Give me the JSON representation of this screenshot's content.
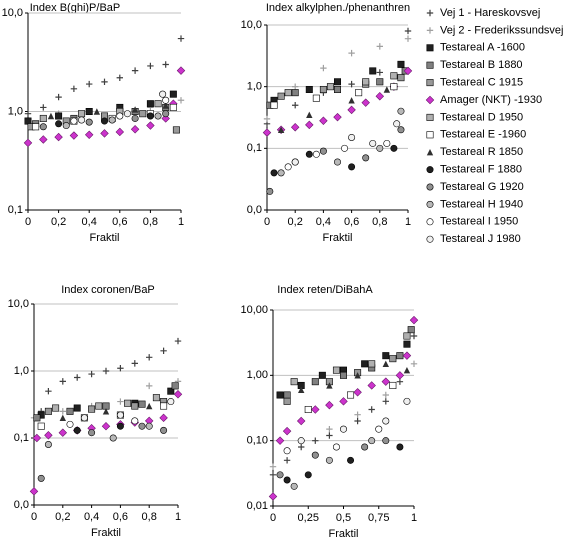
{
  "chart_data": [
    {
      "type": "scatter",
      "title": "Index B(ghi)P/BaP",
      "x_label": "Fraktil",
      "log_y": true,
      "grid": true,
      "xlim": [
        0,
        1
      ],
      "xticks": [
        0,
        {
          "value": 0.2,
          "label": "0,2"
        },
        {
          "value": 0.4,
          "label": "0,4"
        },
        {
          "value": 0.6,
          "label": "0,6"
        },
        {
          "value": 0.8,
          "label": "0,8"
        },
        1
      ],
      "ylim": [
        0.1,
        10
      ],
      "yticks": [
        {
          "value": 0.1,
          "label": "0,1"
        },
        {
          "value": 1,
          "label": "1,0"
        },
        {
          "value": 10,
          "label": "10,0"
        }
      ],
      "series": [
        {
          "name": "Vej 1 - Hareskovsvej",
          "color": "#404040",
          "marker": "plus",
          "x": [
            0,
            0.1,
            0.2,
            0.3,
            0.4,
            0.5,
            0.6,
            0.7,
            0.8,
            0.9,
            1
          ],
          "values": [
            0.95,
            1.1,
            1.4,
            1.7,
            1.9,
            2.0,
            2.2,
            2.6,
            2.9,
            3.0,
            5.5
          ]
        },
        {
          "name": "Vej 2 - Frederikssundsvej",
          "color": "#a0a0a0",
          "marker": "plus",
          "x": [
            0,
            0.2,
            0.4,
            0.6,
            0.8,
            1
          ],
          "values": [
            0.8,
            0.95,
            1.0,
            1.05,
            1.1,
            1.3
          ]
        },
        {
          "name": "Testareal A -1600",
          "color": "#202020",
          "marker": "square",
          "x": [
            0,
            0.2,
            0.4,
            0.6,
            0.8,
            0.95
          ],
          "values": [
            0.8,
            0.9,
            1.0,
            1.1,
            1.2,
            1.5
          ]
        },
        {
          "name": "Testareal B 1880",
          "color": "#808080",
          "marker": "square",
          "x": [
            0.05,
            0.3,
            0.5,
            0.7,
            0.9
          ],
          "values": [
            0.75,
            0.85,
            0.9,
            1.0,
            1.1
          ]
        },
        {
          "name": "Testareal C 1915",
          "color": "#999999",
          "marker": "square",
          "x": [
            0.02,
            0.25,
            0.5,
            0.75,
            0.97
          ],
          "values": [
            0.7,
            0.8,
            0.9,
            0.95,
            0.65
          ]
        },
        {
          "name": "Amager (NKT) -1930",
          "color": "#cc33cc",
          "marker": "diamond",
          "x": [
            0,
            0.1,
            0.2,
            0.3,
            0.4,
            0.5,
            0.6,
            0.7,
            0.8,
            0.9,
            0.95,
            1
          ],
          "values": [
            0.48,
            0.52,
            0.55,
            0.57,
            0.58,
            0.6,
            0.62,
            0.66,
            0.72,
            0.85,
            1.2,
            2.6
          ]
        },
        {
          "name": "Testareal D 1950",
          "color": "#b0b0b0",
          "marker": "square",
          "x": [
            0.1,
            0.35,
            0.6,
            0.85
          ],
          "values": [
            0.85,
            0.95,
            1.0,
            1.2
          ]
        },
        {
          "name": "Testareal E -1960",
          "color": "#ffffff",
          "marker": "square",
          "x": [
            0.05,
            0.3,
            0.55,
            0.8,
            0.95
          ],
          "values": [
            0.7,
            0.8,
            0.85,
            0.95,
            1.1
          ]
        },
        {
          "name": "Testareal R 1850",
          "color": "#303030",
          "marker": "triangle",
          "x": [
            0.15,
            0.45,
            0.7,
            0.9
          ],
          "values": [
            0.9,
            1.0,
            1.05,
            1.15
          ]
        },
        {
          "name": "Testareal F 1880",
          "color": "#202020",
          "marker": "circle",
          "x": [
            0.2,
            0.5,
            0.8
          ],
          "values": [
            0.75,
            0.8,
            0.9
          ]
        },
        {
          "name": "Testareal G 1920",
          "color": "#909090",
          "marker": "circle",
          "x": [
            0.1,
            0.4,
            0.7,
            0.9
          ],
          "values": [
            0.7,
            0.78,
            0.85,
            0.95
          ]
        },
        {
          "name": "Testareal H 1940",
          "color": "#b8b8b8",
          "marker": "circle",
          "x": [
            0.25,
            0.55,
            0.85
          ],
          "values": [
            0.72,
            0.82,
            0.9
          ]
        },
        {
          "name": "Testareal I 1950",
          "color": "#ffffff",
          "marker": "circle",
          "x": [
            0.3,
            0.6,
            0.9
          ],
          "values": [
            0.8,
            0.9,
            1.3
          ]
        },
        {
          "name": "Testareal J 1980",
          "color": "#f0f0f0",
          "marker": "circle",
          "x": [
            0.35,
            0.65,
            0.88
          ],
          "values": [
            0.82,
            0.95,
            1.5
          ]
        }
      ]
    },
    {
      "type": "scatter",
      "title": "Index alkylphen./phenanthren",
      "x_label": "Fraktil",
      "log_y": true,
      "grid": true,
      "xlim": [
        0,
        1
      ],
      "xticks": [
        0,
        {
          "value": 0.2,
          "label": "0,2"
        },
        {
          "value": 0.4,
          "label": "0,4"
        },
        {
          "value": 0.6,
          "label": "0,6"
        },
        {
          "value": 0.8,
          "label": "0,8"
        },
        1
      ],
      "ylim": [
        0.01,
        10
      ],
      "yticks": [
        {
          "value": 0.01,
          "label": "0,0"
        },
        {
          "value": 0.1,
          "label": "0,1"
        },
        {
          "value": 1,
          "label": "1,0"
        },
        {
          "value": 10,
          "label": "10,0"
        }
      ],
      "series": [
        {
          "x": [
            0,
            0.2,
            0.4,
            0.6,
            0.8,
            1
          ],
          "values": [
            0.25,
            0.5,
            0.8,
            1.1,
            1.7,
            8
          ]
        },
        {
          "x": [
            0,
            0.2,
            0.4,
            0.6,
            0.8,
            1
          ],
          "values": [
            0.3,
            1.0,
            2.0,
            3.5,
            4.5,
            6
          ]
        },
        {
          "x": [
            0.05,
            0.3,
            0.5,
            0.75,
            0.95
          ],
          "values": [
            0.6,
            0.9,
            1.2,
            1.8,
            2.3
          ]
        },
        {
          "x": [
            0.02,
            0.2,
            0.5,
            0.8,
            0.98
          ],
          "values": [
            0.5,
            0.8,
            0.9,
            1.2,
            1.8
          ]
        },
        {
          "x": [
            0.1,
            0.4,
            0.7,
            0.95
          ],
          "values": [
            0.7,
            0.9,
            1.1,
            1.4
          ]
        },
        {
          "x": [
            0,
            0.1,
            0.2,
            0.3,
            0.4,
            0.5,
            0.6,
            0.7,
            0.8,
            0.9,
            1
          ],
          "values": [
            0.18,
            0.2,
            0.22,
            0.24,
            0.28,
            0.32,
            0.42,
            0.55,
            0.7,
            1.0,
            1.8
          ]
        },
        {
          "x": [
            0.15,
            0.45,
            0.7,
            0.9
          ],
          "values": [
            0.8,
            1.0,
            1.2,
            1.5
          ]
        },
        {
          "x": [
            0.05,
            0.35,
            0.65,
            0.9
          ],
          "values": [
            0.5,
            0.65,
            0.8,
            1.0
          ]
        },
        {
          "x": [
            0.1,
            0.3,
            0.6,
            0.85
          ],
          "values": [
            0.2,
            0.35,
            0.6,
            0.9
          ]
        },
        {
          "x": [
            0.05,
            0.3,
            0.6,
            0.9
          ],
          "values": [
            0.04,
            0.08,
            0.05,
            0.1
          ]
        },
        {
          "x": [
            0.02,
            0.2,
            0.4,
            0.7,
            0.95
          ],
          "values": [
            0.02,
            0.06,
            0.09,
            0.07,
            0.2
          ]
        },
        {
          "x": [
            0.1,
            0.5,
            0.8,
            0.95
          ],
          "values": [
            0.04,
            0.06,
            0.1,
            0.4
          ]
        },
        {
          "x": [
            0.15,
            0.35,
            0.55,
            0.85
          ],
          "values": [
            0.05,
            0.08,
            0.1,
            0.12
          ]
        },
        {
          "x": [
            0.2,
            0.6,
            0.75,
            0.92
          ],
          "values": [
            0.06,
            0.15,
            0.12,
            0.25
          ]
        }
      ]
    },
    {
      "type": "scatter",
      "title": "Index coronen/BaP",
      "x_label": "Fraktil",
      "log_y": true,
      "grid": true,
      "xlim": [
        0,
        1
      ],
      "xticks": [
        0,
        {
          "value": 0.2,
          "label": "0,2"
        },
        {
          "value": 0.4,
          "label": "0,4"
        },
        {
          "value": 0.6,
          "label": "0,6"
        },
        {
          "value": 0.8,
          "label": "0,8"
        },
        1
      ],
      "ylim": [
        0.01,
        10
      ],
      "yticks": [
        {
          "value": 0.01,
          "label": "0,0"
        },
        {
          "value": 0.1,
          "label": "0,1"
        },
        {
          "value": 1,
          "label": "1,0"
        },
        {
          "value": 10,
          "label": "10,0"
        }
      ],
      "series": [
        {
          "x": [
            0.05,
            0.1,
            0.2,
            0.3,
            0.4,
            0.5,
            0.6,
            0.7,
            0.8,
            0.9,
            1
          ],
          "values": [
            0.25,
            0.5,
            0.7,
            0.8,
            0.9,
            1.0,
            1.1,
            1.3,
            1.6,
            2.0,
            2.8
          ]
        },
        {
          "x": [
            0,
            0.2,
            0.4,
            0.6,
            0.8,
            1
          ],
          "values": [
            0.2,
            0.25,
            0.3,
            0.35,
            0.6,
            0.7
          ]
        },
        {
          "x": [
            0.05,
            0.3,
            0.5,
            0.7,
            0.95
          ],
          "values": [
            0.22,
            0.28,
            0.3,
            0.33,
            0.5
          ]
        },
        {
          "x": [
            0.02,
            0.25,
            0.5,
            0.75,
            0.98
          ],
          "values": [
            0.2,
            0.25,
            0.3,
            0.32,
            0.6
          ]
        },
        {
          "x": [
            0.1,
            0.4,
            0.7,
            0.9
          ],
          "values": [
            0.25,
            0.27,
            0.3,
            0.35
          ]
        },
        {
          "x": [
            0,
            0.02,
            0.1,
            0.2,
            0.3,
            0.4,
            0.5,
            0.6,
            0.7,
            0.8,
            0.9,
            1
          ],
          "values": [
            0.016,
            0.1,
            0.11,
            0.12,
            0.13,
            0.14,
            0.15,
            0.16,
            0.17,
            0.18,
            0.2,
            0.45
          ]
        },
        {
          "x": [
            0.15,
            0.45,
            0.65,
            0.85
          ],
          "values": [
            0.28,
            0.3,
            0.33,
            0.4
          ]
        },
        {
          "x": [
            0.05,
            0.35,
            0.6,
            0.9
          ],
          "values": [
            0.15,
            0.2,
            0.22,
            0.3
          ]
        },
        {
          "x": [
            0.2,
            0.5,
            0.8
          ],
          "values": [
            0.2,
            0.25,
            0.3
          ]
        },
        {
          "x": [
            0.3,
            0.6
          ],
          "values": [
            0.13,
            0.15
          ]
        },
        {
          "x": [
            0.05,
            0.4,
            0.75,
            0.9
          ],
          "values": [
            0.025,
            0.12,
            0.15,
            0.13
          ]
        },
        {
          "x": [
            0.1,
            0.55,
            0.8
          ],
          "values": [
            0.08,
            0.1,
            0.15
          ]
        },
        {
          "x": [
            0.25,
            0.7
          ],
          "values": [
            0.16,
            0.18
          ]
        },
        {
          "x": [
            0.35,
            0.6,
            0.95
          ],
          "values": [
            0.2,
            0.22,
            0.35
          ]
        }
      ]
    },
    {
      "type": "scatter",
      "title": "Index reten/DiBahA",
      "x_label": "Fraktil",
      "log_y": true,
      "grid": true,
      "xlim": [
        0,
        1
      ],
      "xticks": [
        0,
        {
          "value": 0.25,
          "label": "0,25"
        },
        {
          "value": 0.5,
          "label": "0,5"
        },
        {
          "value": 0.75,
          "label": "0,75"
        },
        1
      ],
      "ylim": [
        0.01,
        10
      ],
      "yticks": [
        {
          "value": 0.01,
          "label": "0,01"
        },
        {
          "value": 0.1,
          "label": "0,10"
        },
        {
          "value": 1,
          "label": "1,00"
        },
        {
          "value": 10,
          "label": "10,00"
        }
      ],
      "series": [
        {
          "x": [
            0,
            0.1,
            0.2,
            0.3,
            0.4,
            0.5,
            0.6,
            0.7,
            0.8,
            0.9,
            1
          ],
          "values": [
            0.03,
            0.05,
            0.08,
            0.1,
            0.12,
            0.15,
            0.2,
            0.3,
            0.4,
            0.8,
            4
          ]
        },
        {
          "x": [
            0,
            0.2,
            0.4,
            0.6,
            0.8,
            1
          ],
          "values": [
            0.04,
            0.1,
            0.15,
            0.25,
            0.5,
            1.5
          ]
        },
        {
          "x": [
            0.05,
            0.2,
            0.35,
            0.5,
            0.65,
            0.8,
            0.95
          ],
          "values": [
            0.5,
            0.7,
            1.0,
            1.2,
            1.5,
            2.0,
            3
          ]
        },
        {
          "x": [
            0.1,
            0.3,
            0.5,
            0.7,
            0.9,
            0.98
          ],
          "values": [
            0.5,
            0.8,
            1.0,
            1.3,
            2,
            5
          ]
        },
        {
          "x": [
            0.1,
            0.4,
            0.6,
            0.85
          ],
          "values": [
            0.4,
            0.8,
            1.1,
            1.8
          ]
        },
        {
          "x": [
            0,
            0.05,
            0.1,
            0.2,
            0.3,
            0.4,
            0.5,
            0.6,
            0.7,
            0.8,
            0.9,
            0.95,
            1
          ],
          "values": [
            0.014,
            0.1,
            0.14,
            0.2,
            0.3,
            0.35,
            0.4,
            0.55,
            0.7,
            0.8,
            1.0,
            2,
            7
          ]
        },
        {
          "x": [
            0.15,
            0.45,
            0.7,
            0.95
          ],
          "values": [
            0.8,
            1.2,
            1.5,
            4
          ]
        },
        {
          "x": [
            0.25,
            0.55,
            0.85
          ],
          "values": [
            0.3,
            0.5,
            0.7
          ]
        },
        {
          "x": [
            0.2,
            0.4,
            0.6,
            0.8,
            0.95
          ],
          "values": [
            0.6,
            0.7,
            1.0,
            1.5,
            1.2
          ]
        },
        {
          "x": [
            0.1,
            0.25,
            0.55,
            0.9
          ],
          "values": [
            0.025,
            0.03,
            0.05,
            0.08
          ]
        },
        {
          "x": [
            0.05,
            0.3,
            0.65,
            0.8
          ],
          "values": [
            0.03,
            0.06,
            0.08,
            0.1
          ]
        },
        {
          "x": [
            0.15,
            0.4,
            0.7
          ],
          "values": [
            0.02,
            0.05,
            0.1
          ]
        },
        {
          "x": [
            0.1,
            0.45,
            0.75
          ],
          "values": [
            0.07,
            0.08,
            0.15
          ]
        },
        {
          "x": [
            0.2,
            0.5,
            0.8,
            0.95
          ],
          "values": [
            0.1,
            0.15,
            0.2,
            0.4
          ]
        }
      ]
    }
  ]
}
